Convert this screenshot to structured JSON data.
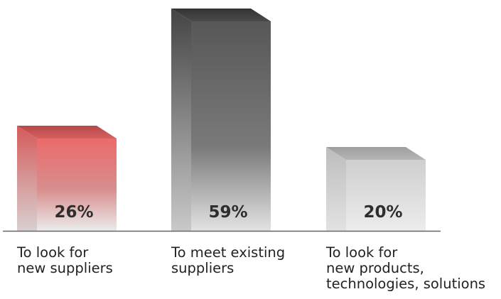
{
  "chart_data": {
    "type": "bar",
    "categories": [
      [
        "To look for",
        "new suppliers"
      ],
      [
        "To meet existing",
        "suppliers"
      ],
      [
        "To look for",
        "new products,",
        "technologies, solutions"
      ]
    ],
    "values": [
      26,
      59,
      20
    ],
    "value_labels": [
      "26%",
      "59%",
      "20%"
    ],
    "unit": "%",
    "ylim": [
      0,
      70
    ],
    "grid": false,
    "legend": "none",
    "style": "3d",
    "colors": [
      "#e86a6a",
      "#555555",
      "#c8c8c8"
    ]
  }
}
